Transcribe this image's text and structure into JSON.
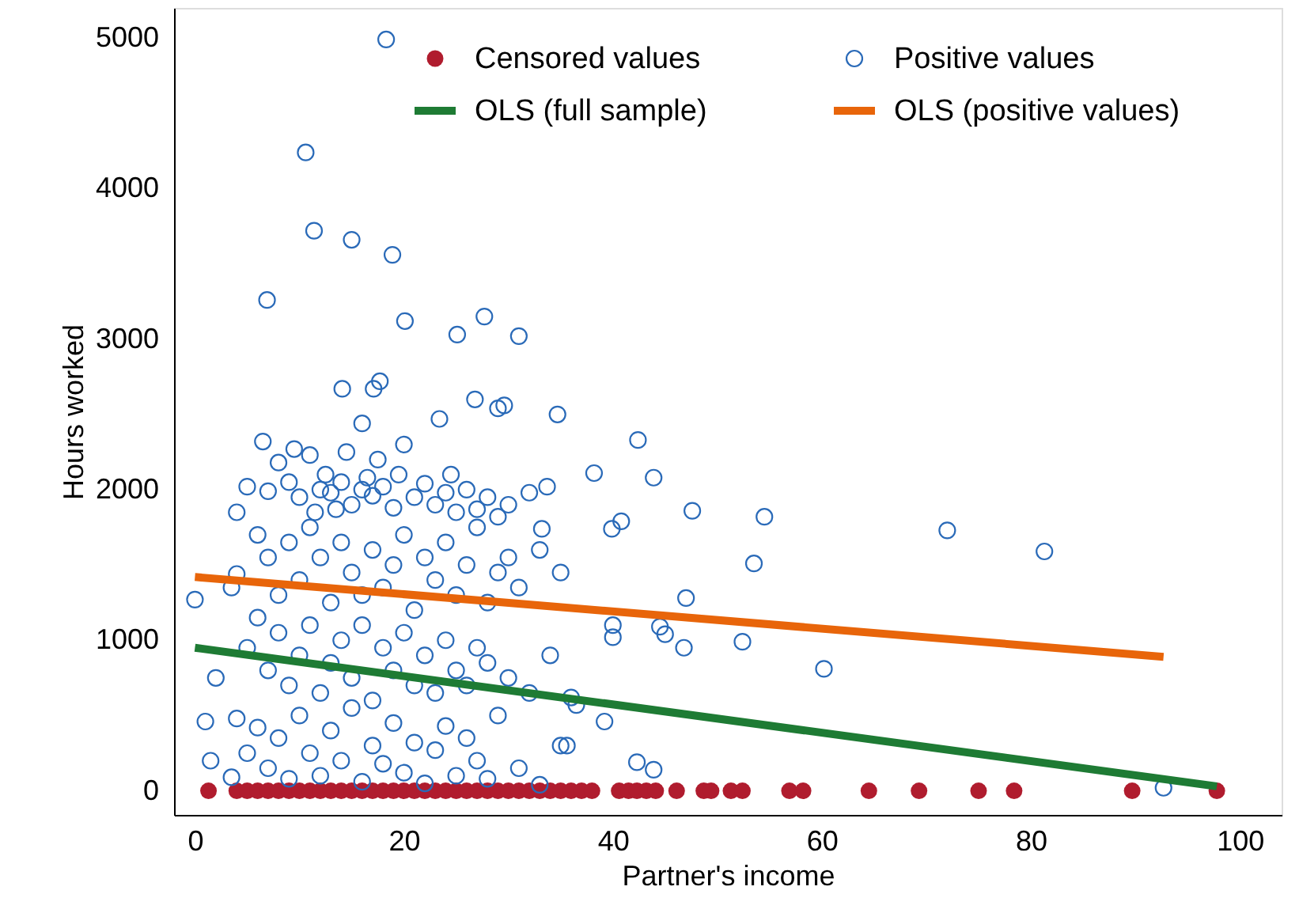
{
  "chart_data": {
    "type": "scatter",
    "xlabel": "Partner's income",
    "ylabel": "Hours worked",
    "xlim": [
      -2,
      104
    ],
    "ylim": [
      -160,
      5200
    ],
    "xticks": [
      0,
      20,
      40,
      60,
      80,
      100
    ],
    "yticks": [
      0,
      {
        "value": 1000,
        "label": "1000"
      },
      {
        "value": 2000,
        "label": "2000"
      },
      {
        "value": 3000,
        "label": "3000"
      },
      {
        "value": 4000,
        "label": "4000"
      },
      {
        "value": 5000,
        "label": "5000"
      }
    ],
    "grid": false,
    "legend": "top",
    "series": [
      {
        "name": "Censored values",
        "marker": "circle",
        "color": "#b01c2e",
        "x": [
          1.3,
          4,
          5,
          6,
          7,
          8,
          9,
          10,
          11,
          12,
          13,
          14,
          15,
          16,
          17,
          18,
          19,
          20,
          21,
          22,
          23,
          24,
          25,
          26,
          27,
          28,
          29,
          30,
          31,
          32,
          33,
          34,
          35,
          36,
          37,
          38,
          40.6,
          41.5,
          42.3,
          43.2,
          44.1,
          46.1,
          48.7,
          49.4,
          51.3,
          52.4,
          56.9,
          58.2,
          64.5,
          69.3,
          75.0,
          78.4,
          89.7,
          97.8
        ],
        "values": [
          0,
          0,
          0,
          0,
          0,
          0,
          0,
          0,
          0,
          0,
          0,
          0,
          0,
          0,
          0,
          0,
          0,
          0,
          0,
          0,
          0,
          0,
          0,
          0,
          0,
          0,
          0,
          0,
          0,
          0,
          0,
          0,
          0,
          0,
          0,
          0,
          0,
          0,
          0,
          0,
          0,
          0,
          0,
          0,
          0,
          0,
          0,
          0,
          0,
          0,
          0,
          0,
          0,
          0
        ]
      },
      {
        "name": "Positive values",
        "marker": "circle",
        "color": "#2a6ab8",
        "x": [
          18.3,
          10.6,
          11.4,
          15.0,
          18.9,
          6.9,
          20.1,
          27.7,
          25.1,
          31.0,
          17.7,
          17.1,
          14.1,
          26.8,
          34.7,
          29.0,
          29.6,
          42.4,
          23.4,
          16.0,
          38.2,
          43.9,
          33.7,
          33.2,
          39.9,
          40.8,
          47.6,
          54.5,
          72.0,
          81.3,
          53.5,
          47.0,
          40.0,
          40.0,
          44.5,
          45.0,
          46.8,
          52.4,
          60.2,
          36.5,
          39.2,
          35.6,
          42.3,
          43.9,
          92.7,
          6.5,
          8,
          9,
          10,
          11,
          12,
          12.5,
          13,
          14,
          15,
          16,
          16.5,
          17,
          18,
          19,
          20,
          21,
          22,
          23,
          24,
          25,
          26,
          27,
          28,
          30,
          32,
          7,
          9.5,
          11.5,
          13.5,
          14.5,
          17.5,
          19.5,
          24.5,
          29,
          5,
          4,
          4,
          6,
          7,
          8,
          9,
          10,
          11,
          12,
          13,
          14,
          15,
          16,
          17,
          18,
          19,
          20,
          21,
          22,
          23,
          24,
          25,
          26,
          27,
          28,
          29,
          31,
          33,
          35,
          30,
          0,
          3.5,
          5,
          6,
          7,
          8,
          9,
          10,
          11,
          12,
          13,
          14,
          15,
          16,
          17,
          18,
          19,
          20,
          21,
          22,
          23,
          24,
          25,
          26,
          27,
          28,
          30,
          32,
          34,
          36,
          2,
          1,
          1.5,
          4,
          5,
          6,
          7,
          8,
          9,
          10,
          11,
          12,
          13,
          14,
          15,
          16,
          17,
          18,
          19,
          20,
          21,
          22,
          23,
          24,
          25,
          26,
          27,
          28,
          29,
          31,
          33,
          35,
          3.5
        ],
        "values": [
          4990,
          4240,
          3720,
          3660,
          3560,
          3260,
          3120,
          3150,
          3030,
          3020,
          2720,
          2670,
          2670,
          2600,
          2500,
          2540,
          2560,
          2330,
          2470,
          2440,
          2110,
          2080,
          2020,
          1740,
          1740,
          1790,
          1860,
          1820,
          1730,
          1590,
          1510,
          1280,
          1100,
          1020,
          1090,
          1040,
          950,
          990,
          810,
          570,
          460,
          300,
          190,
          140,
          20,
          2320,
          2180,
          2050,
          1950,
          2230,
          2000,
          2100,
          1980,
          2050,
          1900,
          2000,
          2080,
          1960,
          2020,
          1880,
          2300,
          1950,
          2040,
          1900,
          1980,
          1850,
          2000,
          1870,
          1950,
          1900,
          1980,
          1990,
          2270,
          1850,
          1870,
          2250,
          2200,
          2100,
          2100,
          1820,
          2020,
          1850,
          1440,
          1700,
          1550,
          1300,
          1650,
          1400,
          1750,
          1550,
          1250,
          1650,
          1450,
          1300,
          1600,
          1350,
          1500,
          1700,
          1200,
          1550,
          1400,
          1650,
          1300,
          1500,
          1750,
          1250,
          1450,
          1350,
          1600,
          1450,
          1550,
          1270,
          1350,
          950,
          1150,
          800,
          1050,
          700,
          900,
          1100,
          650,
          850,
          1000,
          750,
          1100,
          600,
          950,
          800,
          1050,
          700,
          900,
          650,
          1000,
          800,
          700,
          950,
          850,
          750,
          650,
          900,
          620,
          750,
          460,
          200,
          480,
          250,
          420,
          150,
          350,
          80,
          500,
          250,
          100,
          400,
          200,
          550,
          60,
          300,
          180,
          450,
          120,
          320,
          50,
          270,
          430,
          100,
          350,
          200,
          80,
          500,
          150,
          40,
          300,
          90
        ]
      },
      {
        "name": "OLS (full sample)",
        "type": "line",
        "marker": "none",
        "color": "#1e7b34",
        "x": [
          0,
          97.8
        ],
        "values": [
          950,
          30
        ]
      },
      {
        "name": "OLS (positive values)",
        "type": "line",
        "marker": "none",
        "color": "#e8650a",
        "x": [
          0,
          92.7
        ],
        "values": [
          1420,
          890
        ]
      }
    ]
  }
}
